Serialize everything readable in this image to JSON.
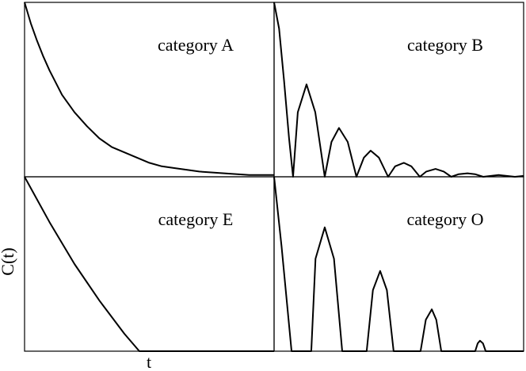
{
  "chart_data": [
    {
      "type": "line",
      "annotation": "category A",
      "color": "#000000",
      "xlim": [
        0,
        10
      ],
      "ylim": [
        0,
        1
      ],
      "x": [
        0,
        0.25,
        0.5,
        0.75,
        1,
        1.25,
        1.5,
        1.75,
        2,
        2.5,
        3,
        3.5,
        4,
        4.5,
        5,
        5.5,
        6,
        7,
        8,
        9,
        10
      ],
      "values": [
        1,
        0.88,
        0.78,
        0.69,
        0.61,
        0.54,
        0.47,
        0.42,
        0.37,
        0.29,
        0.22,
        0.17,
        0.14,
        0.11,
        0.08,
        0.06,
        0.05,
        0.03,
        0.02,
        0.01,
        0.01
      ]
    },
    {
      "type": "line",
      "annotation": "category B",
      "color": "#000000",
      "xlim": [
        0,
        10
      ],
      "ylim": [
        0,
        1
      ],
      "x": [
        0,
        0.2,
        0.4,
        0.6,
        0.76,
        0.95,
        1.3,
        1.65,
        2.03,
        2.3,
        2.6,
        2.95,
        3.3,
        3.6,
        3.87,
        4.2,
        4.57,
        4.85,
        5.2,
        5.5,
        5.84,
        6.1,
        6.47,
        6.8,
        7.1,
        7.4,
        7.75,
        8.05,
        8.38,
        9.0,
        9.65,
        10
      ],
      "values": [
        1,
        0.85,
        0.55,
        0.22,
        0,
        0.37,
        0.53,
        0.37,
        0,
        0.2,
        0.28,
        0.2,
        0,
        0.11,
        0.15,
        0.11,
        0,
        0.06,
        0.08,
        0.06,
        0,
        0.03,
        0.045,
        0.03,
        0,
        0.015,
        0.02,
        0.015,
        0,
        0.01,
        0,
        0.005
      ]
    },
    {
      "type": "line",
      "annotation": "category E",
      "color": "#000000",
      "xlim": [
        0,
        10
      ],
      "ylim": [
        0,
        1
      ],
      "xlabel": "t",
      "ylabel": "C(t)",
      "x": [
        0,
        1,
        2,
        3,
        4,
        4.6,
        10
      ],
      "values": [
        1,
        0.74,
        0.5,
        0.29,
        0.1,
        0,
        0
      ]
    },
    {
      "type": "line",
      "annotation": "category O",
      "color": "#000000",
      "xlim": [
        0,
        10
      ],
      "ylim": [
        0,
        1
      ],
      "x": [
        0,
        0.3,
        0.7,
        1.49,
        1.66,
        2.03,
        2.4,
        2.73,
        3.71,
        3.96,
        4.25,
        4.52,
        4.79,
        5.87,
        6.08,
        6.32,
        6.5,
        6.7,
        8.06,
        8.16,
        8.25,
        8.37,
        8.48,
        10
      ],
      "values": [
        1,
        0.6,
        0,
        0,
        0.53,
        0.71,
        0.53,
        0,
        0,
        0.35,
        0.46,
        0.35,
        0,
        0,
        0.18,
        0.24,
        0.18,
        0,
        0,
        0.045,
        0.06,
        0.045,
        0,
        0
      ]
    }
  ]
}
